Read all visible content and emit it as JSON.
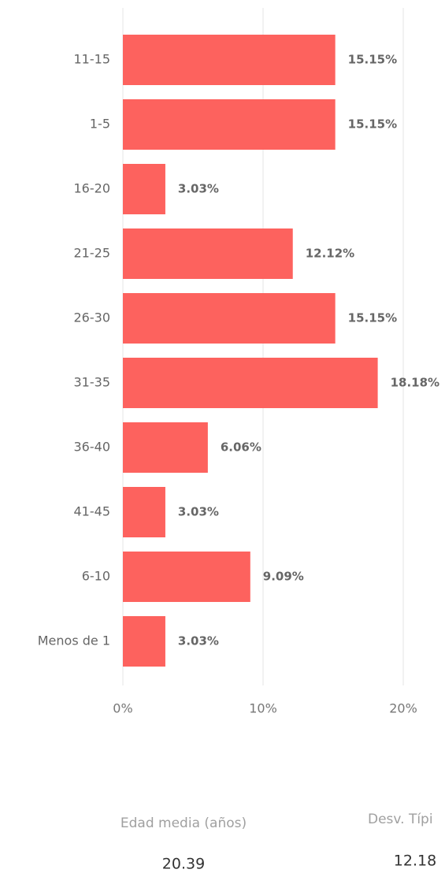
{
  "chart_data": {
    "type": "hbar",
    "categories": [
      "11-15",
      "1-5",
      "16-20",
      "21-25",
      "26-30",
      "31-35",
      "36-40",
      "41-45",
      "6-10",
      "Menos de 1"
    ],
    "values": [
      15.15,
      15.15,
      3.03,
      12.12,
      15.15,
      18.18,
      6.06,
      3.03,
      9.09,
      3.03
    ],
    "value_labels": [
      "15.15%",
      "15.15%",
      "3.03%",
      "12.12%",
      "15.15%",
      "18.18%",
      "6.06%",
      "3.03%",
      "9.09%",
      "3.03%"
    ],
    "color": "#fd625e",
    "xlim": [
      0,
      20
    ],
    "xticks": [
      {
        "value": 0,
        "label": "0%"
      },
      {
        "value": 10,
        "label": "10%"
      },
      {
        "value": 20,
        "label": "20%"
      }
    ],
    "grid": true
  },
  "kpis": [
    {
      "label": "Edad media (años)",
      "value": 20.39
    },
    {
      "label": "Desv. Típi",
      "value": 12.18
    }
  ]
}
